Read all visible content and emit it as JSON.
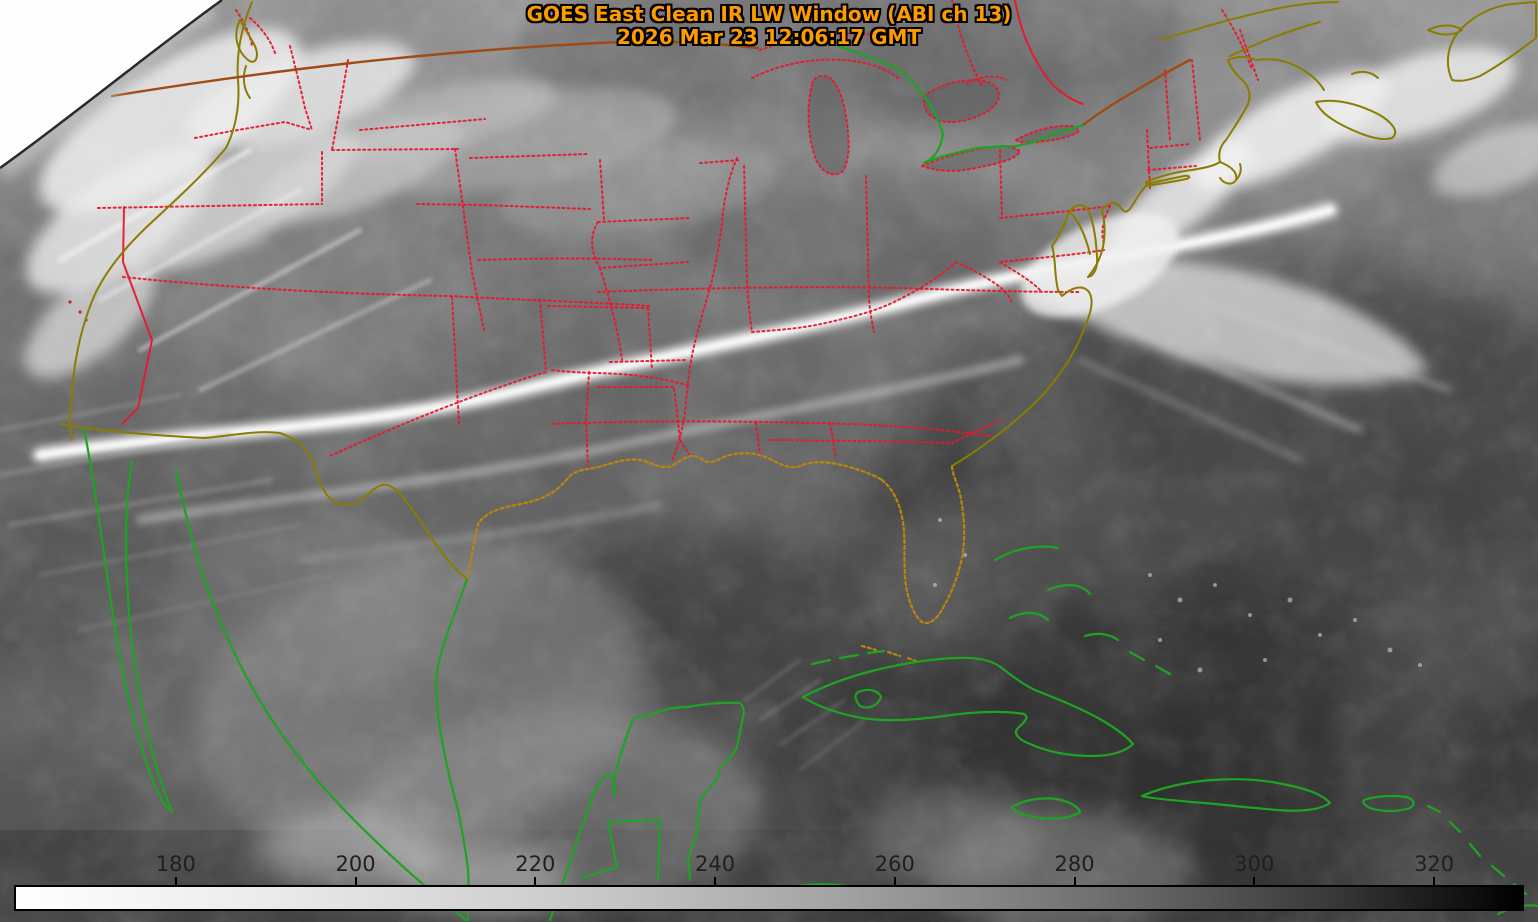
{
  "header": {
    "title": "GOES East Clean IR LW Window (ABI ch 13)",
    "timestamp": "2026 Mar 23 12:06:17 GMT"
  },
  "colorbar": {
    "tick_values": [
      180,
      200,
      220,
      240,
      260,
      280,
      300,
      320
    ],
    "range_min": 162,
    "range_max": 330,
    "gradient_start_color": "#ffffff",
    "gradient_end_color": "#000000",
    "tick_label_color": "#1f1f1f"
  },
  "theme": {
    "title_color": "#ff9b00",
    "state_boundary_color": "#e8182e",
    "coastline_olive_color": "#8a7c00",
    "coastline_orange_color": "#b8860b",
    "international_border_color": "#a04a14",
    "latin_america_coast_color": "#1fa322",
    "off_earth_color": "#ffffff"
  }
}
